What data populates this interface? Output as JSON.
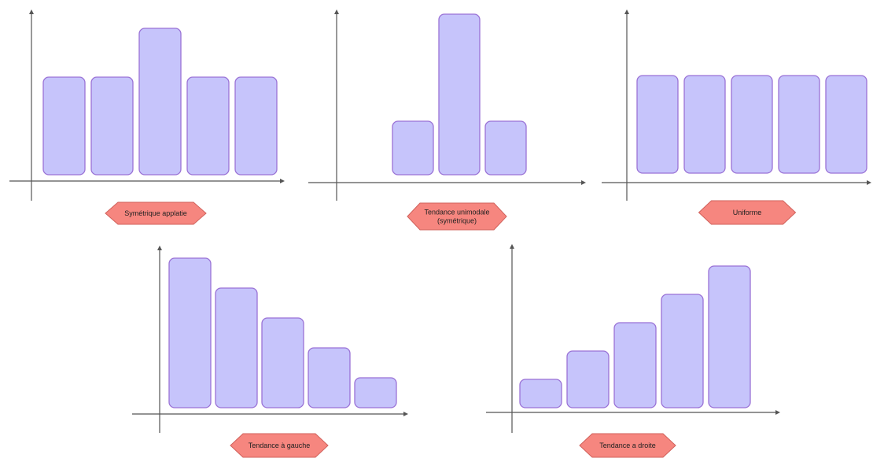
{
  "diagrams": [
    {
      "id": "symetrique-applatie",
      "label_lines": [
        "Symétrique applatie"
      ],
      "bars": [
        4,
        4,
        6,
        4,
        4
      ],
      "max": 7
    },
    {
      "id": "tendance-unimodale",
      "label_lines": [
        "Tendance unimodale",
        "(symétrique)"
      ],
      "bars": [
        2,
        6,
        2
      ],
      "max": 6.3
    },
    {
      "id": "uniforme",
      "label_lines": [
        "Uniforme"
      ],
      "bars": [
        4,
        4,
        4,
        4,
        4
      ],
      "max": 6
    },
    {
      "id": "tendance-a-gauche",
      "label_lines": [
        "Tendance à gauche"
      ],
      "bars": [
        5,
        4,
        3,
        2,
        1
      ],
      "max": 5.2
    },
    {
      "id": "tendance-a-droite",
      "label_lines": [
        "Tendance a droite"
      ],
      "bars": [
        1,
        2,
        3,
        4,
        5
      ],
      "max": 5.6
    }
  ],
  "colors": {
    "bar_fill": "#c6c4fb",
    "bar_stroke": "#9a72d6",
    "label_fill": "#f6867f",
    "axis": "#555555"
  }
}
